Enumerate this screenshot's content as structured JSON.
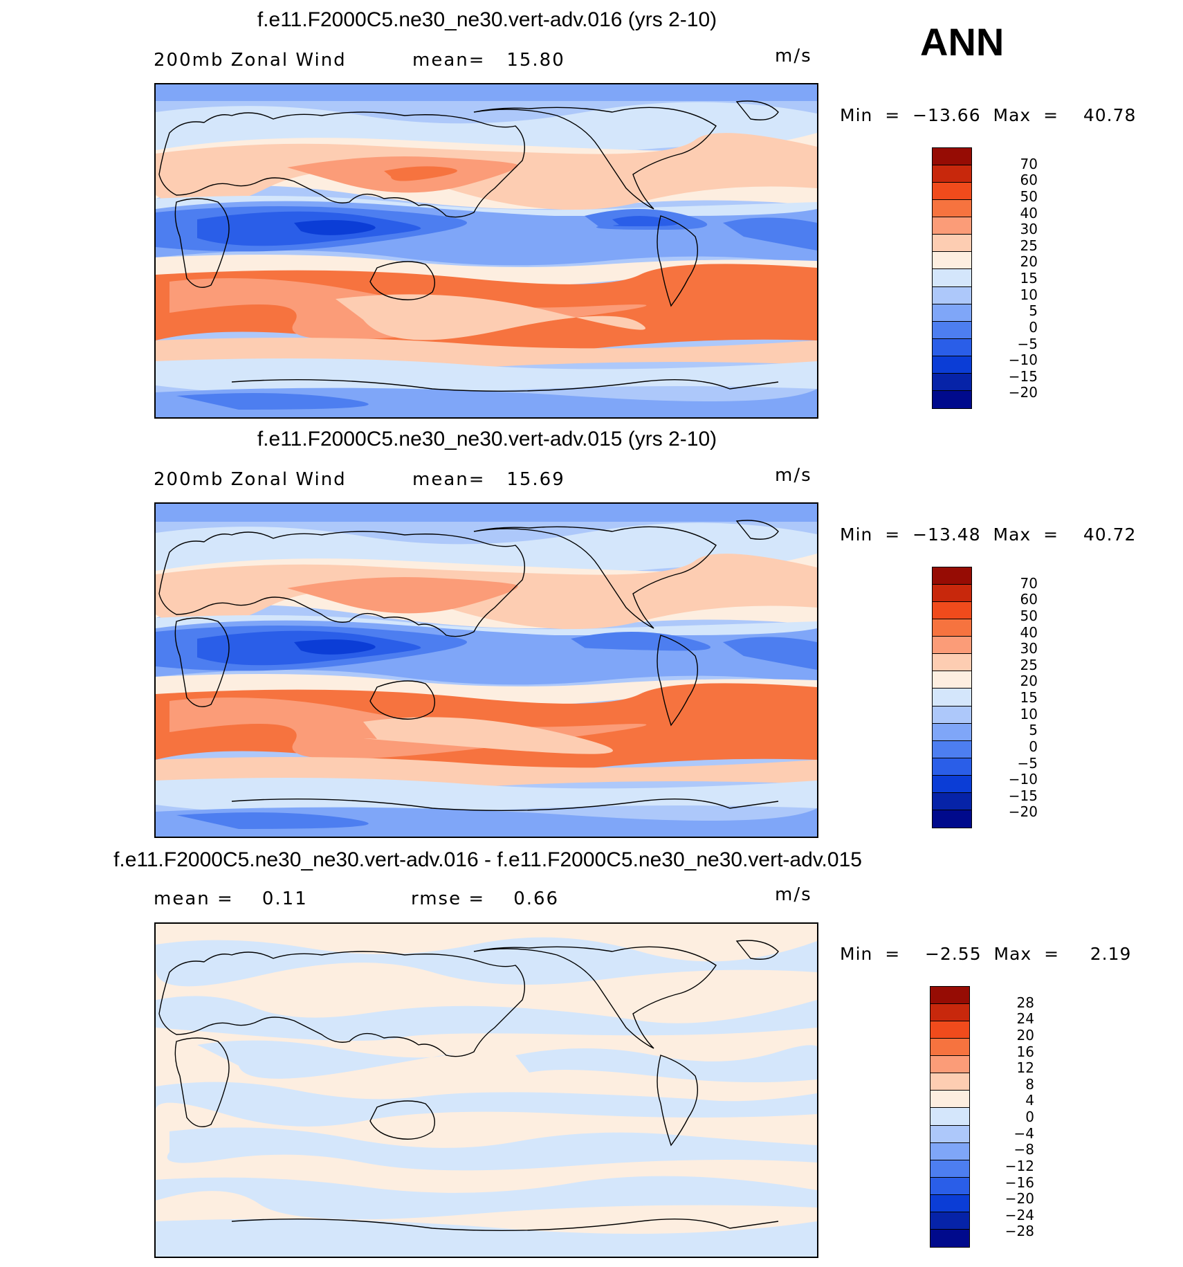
{
  "season": "ANN",
  "palette": {
    "full": [
      "#000a8c",
      "#0623a8",
      "#0b3dd6",
      "#2a5ee8",
      "#4d7ef0",
      "#7fa6f8",
      "#adc8fa",
      "#d4e6fb",
      "#fdeee0",
      "#fdcdb2",
      "#fb9c78",
      "#f6733f",
      "#f04b1c",
      "#c8280c",
      "#960c04"
    ],
    "diff": [
      "#000a8c",
      "#0623a8",
      "#0b3dd6",
      "#2a5ee8",
      "#4d7ef0",
      "#7fa6f8",
      "#adc8fa",
      "#d4e6fb",
      "#fdeee0",
      "#fdcdb2",
      "#fb9c78",
      "#f6733f",
      "#f04b1c",
      "#c8280c",
      "#960c04"
    ]
  },
  "panels": [
    {
      "title": "f.e11.F2000C5.ne30_ne30.vert-adv.016 (yrs 2-10)",
      "left_label": "200mb Zonal Wind",
      "stat_label": "mean=   15.80",
      "units": "m/s",
      "minmax": "Min  =  −13.66  Max  =    40.78",
      "colorbar_labels": [
        "70",
        "60",
        "50",
        "40",
        "30",
        "25",
        "20",
        "15",
        "10",
        "5",
        "0",
        "−5",
        "−10",
        "−15",
        "−20"
      ]
    },
    {
      "title": "f.e11.F2000C5.ne30_ne30.vert-adv.015 (yrs 2-10)",
      "left_label": "200mb Zonal Wind",
      "stat_label": "mean=   15.69",
      "units": "m/s",
      "minmax": "Min  =  −13.48  Max  =    40.72",
      "colorbar_labels": [
        "70",
        "60",
        "50",
        "40",
        "30",
        "25",
        "20",
        "15",
        "10",
        "5",
        "0",
        "−5",
        "−10",
        "−15",
        "−20"
      ]
    },
    {
      "title": "f.e11.F2000C5.ne30_ne30.vert-adv.016 - f.e11.F2000C5.ne30_ne30.vert-adv.015",
      "left_label": "mean =    0.11",
      "stat_label": "rmse =    0.66",
      "units": "m/s",
      "minmax": "Min  =    −2.55  Max  =     2.19",
      "colorbar_labels": [
        "28",
        "24",
        "20",
        "16",
        "12",
        "8",
        "4",
        "0",
        "−4",
        "−8",
        "−12",
        "−16",
        "−20",
        "−24",
        "−28"
      ]
    }
  ]
}
